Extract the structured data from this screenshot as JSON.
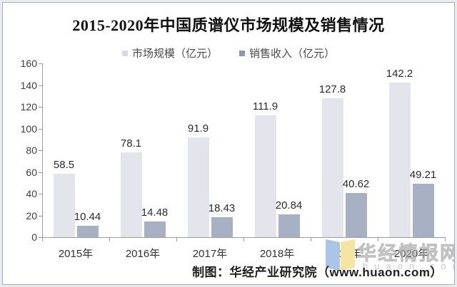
{
  "title": "2015-2020年中国质谱仪市场规模及销售情况",
  "chart_data": {
    "type": "bar",
    "categories": [
      "2015年",
      "2016年",
      "2017年",
      "2018年",
      "2019年",
      "2020年"
    ],
    "series": [
      {
        "name": "市场规模（亿元）",
        "color": "#e3e4ec",
        "legend_color": "#d7d9e3",
        "values": [
          58.5,
          78.1,
          91.9,
          111.9,
          127.8,
          142.2
        ]
      },
      {
        "name": "销售收入（亿元）",
        "color": "#a8b0c4",
        "legend_color": "#8d96b4",
        "values": [
          10.44,
          14.48,
          18.43,
          20.84,
          40.62,
          49.21
        ]
      }
    ],
    "value_labels": [
      [
        "58.5",
        "78.1",
        "91.9",
        "111.9",
        "127.8",
        "142.2"
      ],
      [
        "10.44",
        "14.48",
        "18.43",
        "20.84",
        "40.62",
        "49.21"
      ]
    ],
    "ylim": [
      0,
      160
    ],
    "ytick_step": 20,
    "grid": false,
    "legend_position": "top"
  },
  "footer": {
    "credit": "制图：华经产业研究院（www.huaon.com）"
  },
  "watermark": {
    "name": "华经情报网",
    "domain": "huaon.com",
    "logo_left_color": "#a9c6e8",
    "logo_right_color": "#f4e6a2"
  },
  "colors": {
    "axis": "#9b9b9b",
    "tick_text": "#3d3d3d",
    "value_text": "#2b2b2b"
  }
}
